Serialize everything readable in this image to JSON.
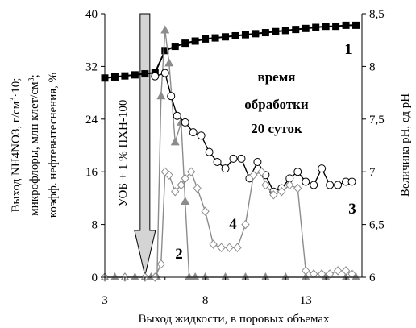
{
  "chart_data": {
    "type": "line",
    "xlabel": "Выход жидкости, в поровых объемах",
    "ylabel_left_lines": [
      "Выход NH4NO3, г/см^3·10;",
      "микрофлоры, млн клет/см^3;",
      "коэфф. нефтевытеснения, %"
    ],
    "ylabel_right": "Величина pH, ед pH",
    "xlim": [
      3,
      15.8
    ],
    "xticks": [
      "3",
      "8",
      "13"
    ],
    "xtick_values": [
      3,
      8,
      13
    ],
    "ylim_left": [
      0,
      40
    ],
    "yticks_left": [
      "0",
      "8",
      "16",
      "24",
      "32",
      "40"
    ],
    "ylim_right": [
      6,
      8.5
    ],
    "yticks_right": [
      "6",
      "6,5",
      "7",
      "7,5",
      "8",
      "8,5"
    ],
    "annotation": [
      "время",
      "обработки",
      "20 суток"
    ],
    "arrow_label": "УОБ + 1 % ПХН-100",
    "arrow_x": 5.0,
    "series": [
      {
        "label": "1",
        "axis": "right",
        "marker": "square",
        "color": "#000000",
        "x": [
          3.0,
          3.5,
          4.0,
          4.5,
          5.0,
          5.5,
          6.0,
          6.5,
          7.0,
          7.5,
          8.0,
          8.5,
          9.0,
          9.5,
          10.0,
          10.5,
          11.0,
          11.5,
          12.0,
          12.5,
          13.0,
          13.5,
          14.0,
          14.5,
          15.0,
          15.5
        ],
        "y": [
          7.89,
          7.9,
          7.91,
          7.92,
          7.93,
          7.94,
          8.15,
          8.19,
          8.22,
          8.24,
          8.26,
          8.27,
          8.28,
          8.29,
          8.3,
          8.31,
          8.32,
          8.33,
          8.34,
          8.35,
          8.36,
          8.37,
          8.38,
          8.38,
          8.39,
          8.39
        ]
      },
      {
        "label": "2",
        "axis": "left",
        "marker": "triangle",
        "color": "#8c8c8c",
        "x": [
          3.0,
          3.5,
          4.0,
          4.5,
          5.0,
          5.3,
          5.6,
          5.8,
          6.0,
          6.2,
          6.5,
          6.8,
          7.0,
          7.2,
          7.5,
          8.0,
          9.0,
          10.0,
          11.0,
          12.0,
          13.0,
          14.0,
          15.0,
          15.5
        ],
        "y": [
          0,
          0,
          0,
          0,
          0,
          0,
          0,
          27.5,
          37.5,
          32.5,
          20.5,
          23.5,
          11.5,
          0,
          0,
          0,
          0,
          0,
          0,
          0,
          0,
          0,
          0,
          0
        ]
      },
      {
        "label": "3",
        "axis": "left",
        "marker": "circle",
        "color": "#000000",
        "x": [
          5.5,
          6.0,
          6.3,
          6.6,
          7.0,
          7.4,
          7.8,
          8.2,
          8.6,
          9.0,
          9.4,
          9.8,
          10.2,
          10.6,
          11.0,
          11.4,
          11.8,
          12.2,
          12.6,
          13.0,
          13.4,
          13.8,
          14.2,
          14.6,
          15.0,
          15.3
        ],
        "y": [
          30.5,
          31.0,
          27.5,
          24.5,
          23.5,
          22.0,
          21.5,
          19.0,
          17.5,
          16.5,
          18.0,
          18.0,
          15.0,
          17.5,
          15.5,
          13.0,
          13.5,
          15.0,
          16.0,
          14.5,
          14.0,
          16.5,
          14.0,
          14.0,
          14.5,
          14.5
        ]
      },
      {
        "label": "4",
        "axis": "left",
        "marker": "diamond",
        "color": "#8c8c8c",
        "x": [
          3.0,
          4.0,
          5.0,
          5.5,
          5.8,
          6.0,
          6.2,
          6.5,
          6.8,
          7.0,
          7.3,
          7.6,
          8.0,
          8.4,
          8.8,
          9.2,
          9.6,
          10.0,
          10.4,
          10.8,
          11.0,
          11.4,
          11.8,
          12.2,
          12.6,
          13.0,
          13.4,
          13.8,
          14.2,
          14.6,
          15.0,
          15.3
        ],
        "y": [
          0,
          0,
          0,
          0,
          2.0,
          16.0,
          15.5,
          13.0,
          14.0,
          15.0,
          16.0,
          13.5,
          10.0,
          5.0,
          4.5,
          4.5,
          4.5,
          8.0,
          15.5,
          16.0,
          14.0,
          12.5,
          13.0,
          14.0,
          13.5,
          1.0,
          0.5,
          0.5,
          0.5,
          1.0,
          1.0,
          0.5
        ]
      }
    ]
  }
}
